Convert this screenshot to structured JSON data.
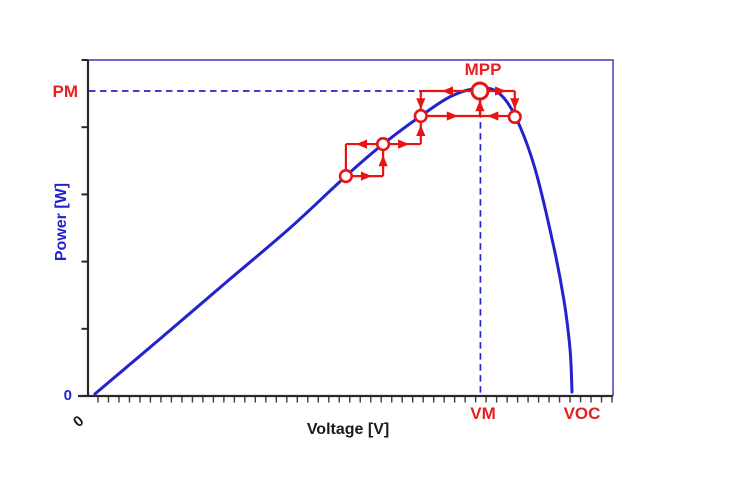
{
  "figure": {
    "description": "P-V characteristic of a photovoltaic panel with perturb-and-observe maximum power point tracking steps"
  },
  "labels": {
    "pm": "PM",
    "mpp": "MPP",
    "vm": "VM",
    "voc": "VOC",
    "x_zero": "0",
    "y_zero": "0",
    "xlabel": "Voltage [V]",
    "ylabel": "Power [W]"
  },
  "colors": {
    "curve_blue": "#2323cd",
    "border_purple": "#5b55c4",
    "annotation_red": "#e81414",
    "axis_black": "#2a2a2a",
    "tick_gray": "#3a3a3a",
    "marker_fill": "#ffffff"
  },
  "chart_data": {
    "type": "line",
    "title": "",
    "xlabel": "Voltage [V]",
    "ylabel": "Power [W]",
    "x_units": "voltage normalized to VOC",
    "y_units": "power normalized to PM",
    "xlim": [
      0,
      1.09
    ],
    "ylim": [
      0,
      1.1
    ],
    "grid": false,
    "x_axis_annotations": [
      {
        "label": "0",
        "v": 0.0
      },
      {
        "label": "VM",
        "v": 0.808
      },
      {
        "label": "VOC",
        "v": 1.0
      }
    ],
    "y_axis_annotations": [
      {
        "label": "0",
        "p": 0.0
      },
      {
        "label": "PM",
        "p": 1.0
      }
    ],
    "axes_style": {
      "x_minor_tick_count": 50,
      "y_tick_count": 6
    },
    "curve": {
      "name": "P-V characteristic",
      "points": [
        [
          0.0,
          0.007
        ],
        [
          0.136,
          0.187
        ],
        [
          0.273,
          0.37
        ],
        [
          0.409,
          0.551
        ],
        [
          0.526,
          0.721
        ],
        [
          0.604,
          0.826
        ],
        [
          0.683,
          0.918
        ],
        [
          0.748,
          0.984
        ],
        [
          0.809,
          1.01
        ],
        [
          0.849,
          0.99
        ],
        [
          0.883,
          0.911
        ],
        [
          0.922,
          0.748
        ],
        [
          0.96,
          0.502
        ],
        [
          0.983,
          0.315
        ],
        [
          0.996,
          0.151
        ],
        [
          1.0,
          0.013
        ]
      ]
    },
    "operating_points": [
      {
        "name": "step-1",
        "v": 0.526,
        "p": 0.721,
        "major": false
      },
      {
        "name": "step-2",
        "v": 0.604,
        "p": 0.826,
        "major": false
      },
      {
        "name": "step-3",
        "v": 0.683,
        "p": 0.918,
        "major": false
      },
      {
        "name": "MPP",
        "v": 0.807,
        "p": 1.0,
        "major": true
      },
      {
        "name": "step-5",
        "v": 0.88,
        "p": 0.915,
        "major": false
      }
    ],
    "po_segments": [
      [
        0.526,
        0.721,
        0.604,
        0.721
      ],
      [
        0.604,
        0.721,
        0.604,
        0.826
      ],
      [
        0.604,
        0.826,
        0.526,
        0.826
      ],
      [
        0.526,
        0.826,
        0.526,
        0.721
      ],
      [
        0.604,
        0.826,
        0.683,
        0.826
      ],
      [
        0.683,
        0.826,
        0.683,
        0.918
      ],
      [
        0.683,
        0.918,
        0.88,
        0.918
      ],
      [
        0.807,
        0.918,
        0.807,
        0.972
      ],
      [
        0.683,
        1.0,
        0.88,
        1.0
      ],
      [
        0.683,
        1.0,
        0.683,
        0.918
      ],
      [
        0.88,
        1.0,
        0.88,
        0.915
      ]
    ],
    "po_arrows": [
      {
        "v": 0.568,
        "p": 0.721,
        "angle": 0
      },
      {
        "v": 0.604,
        "p": 0.77,
        "angle": -90
      },
      {
        "v": 0.56,
        "p": 0.826,
        "angle": 180
      },
      {
        "v": 0.646,
        "p": 0.826,
        "angle": 0
      },
      {
        "v": 0.683,
        "p": 0.869,
        "angle": -90
      },
      {
        "v": 0.748,
        "p": 0.918,
        "angle": 0
      },
      {
        "v": 0.835,
        "p": 0.918,
        "angle": 180
      },
      {
        "v": 0.807,
        "p": 0.95,
        "angle": -90
      },
      {
        "v": 0.74,
        "p": 1.0,
        "angle": 180
      },
      {
        "v": 0.849,
        "p": 1.0,
        "angle": 0
      },
      {
        "v": 0.683,
        "p": 0.96,
        "angle": 90
      },
      {
        "v": 0.88,
        "p": 0.96,
        "angle": 90
      }
    ],
    "dashed_guides": {
      "pm_level_p": 1.0,
      "pm_line_to_v": 0.683,
      "vm_line_v": 0.808,
      "vm_line_top_p": 0.97
    }
  }
}
